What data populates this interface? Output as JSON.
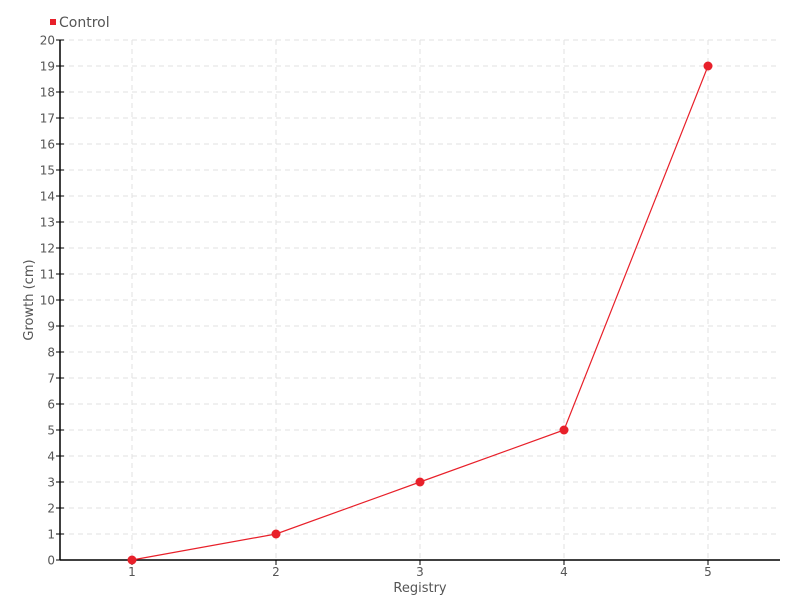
{
  "chart_data": {
    "type": "line",
    "title": "",
    "xlabel": "Registry",
    "ylabel": "Growth (cm)",
    "categories": [
      "1",
      "2",
      "3",
      "4",
      "5"
    ],
    "series": [
      {
        "name": "Control",
        "color": "#e8202a",
        "values": [
          0,
          1,
          3,
          5,
          19
        ]
      }
    ],
    "ylim": [
      0,
      20
    ],
    "yticks": [
      0,
      1,
      2,
      3,
      4,
      5,
      6,
      7,
      8,
      9,
      10,
      11,
      12,
      13,
      14,
      15,
      16,
      17,
      18,
      19,
      20
    ],
    "grid": true,
    "legend": "top-left"
  }
}
